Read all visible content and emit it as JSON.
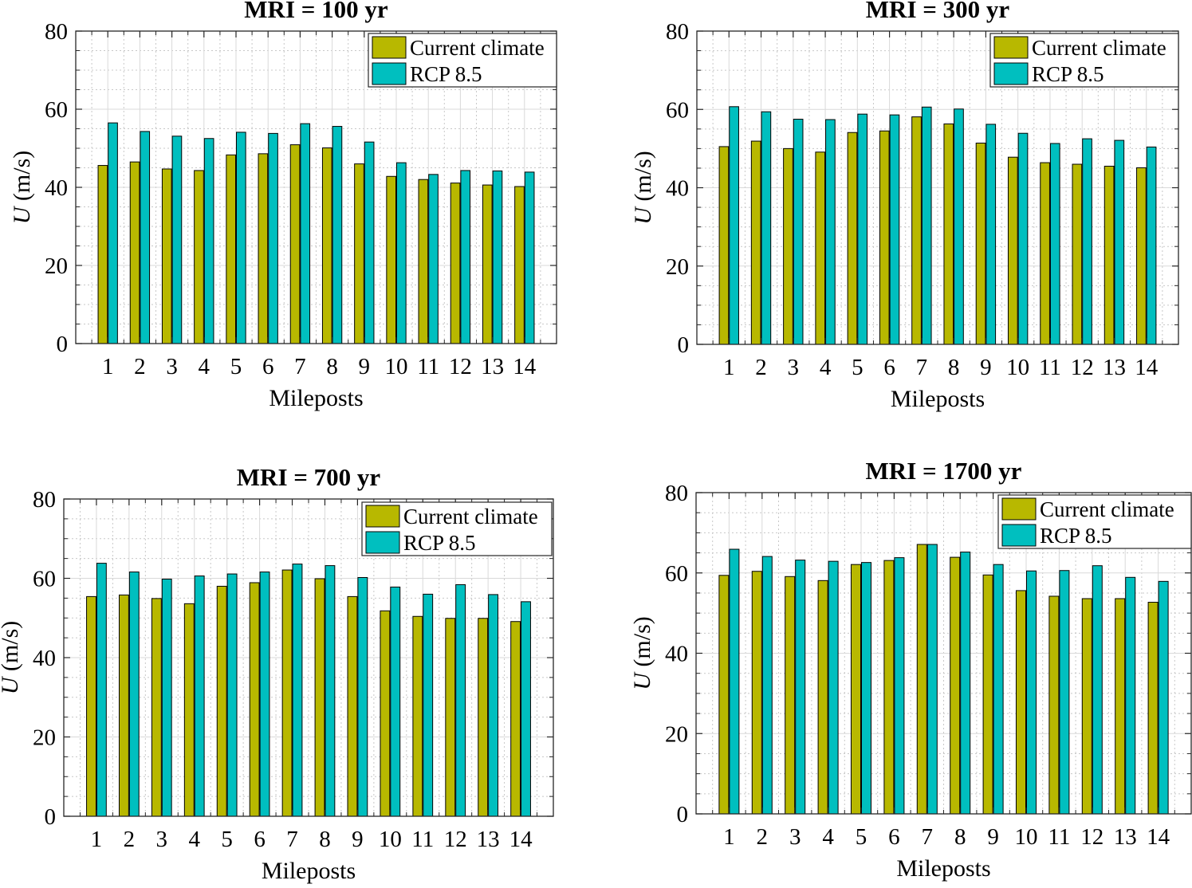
{
  "colors": {
    "current": "#b8b800",
    "rcp": "#00bfbf",
    "axis": "#262626",
    "background": "#ffffff"
  },
  "chart_data": [
    {
      "type": "bar",
      "title": "MRI = 100 yr",
      "xlabel": "Mileposts",
      "ylabel_var": "U",
      "ylabel_unit": " (m/s)",
      "ylim": [
        0,
        80
      ],
      "yticks": [
        0,
        20,
        40,
        60,
        80
      ],
      "categories": [
        "1",
        "2",
        "3",
        "4",
        "5",
        "6",
        "7",
        "8",
        "9",
        "10",
        "11",
        "12",
        "13",
        "14"
      ],
      "legend_position": "top-right",
      "series": [
        {
          "name": "Current climate",
          "values": [
            45.6,
            46.5,
            44.7,
            44.3,
            48.3,
            48.6,
            50.9,
            50.1,
            46.0,
            42.8,
            42.0,
            41.1,
            40.6,
            40.2
          ]
        },
        {
          "name": "RCP 8.5",
          "values": [
            56.5,
            54.3,
            53.1,
            52.5,
            54.1,
            53.8,
            56.3,
            55.6,
            51.6,
            46.3,
            43.3,
            44.3,
            44.2,
            43.9
          ]
        }
      ]
    },
    {
      "type": "bar",
      "title": "MRI = 300 yr",
      "xlabel": "Mileposts",
      "ylabel_var": "U",
      "ylabel_unit": " (m/s)",
      "ylim": [
        0,
        80
      ],
      "yticks": [
        0,
        20,
        40,
        60,
        80
      ],
      "categories": [
        "1",
        "2",
        "3",
        "4",
        "5",
        "6",
        "7",
        "8",
        "9",
        "10",
        "11",
        "12",
        "13",
        "14"
      ],
      "legend_position": "top-right",
      "series": [
        {
          "name": "Current climate",
          "values": [
            50.5,
            51.9,
            50.0,
            49.1,
            54.1,
            54.5,
            58.1,
            56.3,
            51.4,
            47.8,
            46.4,
            46.0,
            45.5,
            45.1
          ]
        },
        {
          "name": "RCP 8.5",
          "values": [
            60.7,
            59.4,
            57.5,
            57.4,
            58.8,
            58.6,
            60.6,
            60.1,
            56.2,
            53.9,
            51.3,
            52.5,
            52.1,
            50.4
          ]
        }
      ]
    },
    {
      "type": "bar",
      "title": "MRI = 700 yr",
      "xlabel": "Mileposts",
      "ylabel_var": "U",
      "ylabel_unit": " (m/s)",
      "ylim": [
        0,
        80
      ],
      "yticks": [
        0,
        20,
        40,
        60,
        80
      ],
      "categories": [
        "1",
        "2",
        "3",
        "4",
        "5",
        "6",
        "7",
        "8",
        "9",
        "10",
        "11",
        "12",
        "13",
        "14"
      ],
      "legend_position": "top-right",
      "series": [
        {
          "name": "Current climate",
          "values": [
            55.4,
            55.8,
            54.9,
            53.6,
            58.0,
            58.9,
            62.1,
            59.9,
            55.4,
            51.8,
            50.4,
            49.9,
            49.9,
            49.1
          ]
        },
        {
          "name": "RCP 8.5",
          "values": [
            63.8,
            61.6,
            59.8,
            60.6,
            61.1,
            61.6,
            63.6,
            63.2,
            60.2,
            57.8,
            56.0,
            58.4,
            55.9,
            54.1
          ]
        }
      ]
    },
    {
      "type": "bar",
      "title": "MRI = 1700 yr",
      "xlabel": "Mileposts",
      "ylabel_var": "U",
      "ylabel_unit": " (m/s)",
      "ylim": [
        0,
        80
      ],
      "yticks": [
        0,
        20,
        40,
        60,
        80
      ],
      "categories": [
        "1",
        "2",
        "3",
        "4",
        "5",
        "6",
        "7",
        "8",
        "9",
        "10",
        "11",
        "12",
        "13",
        "14"
      ],
      "legend_position": "top-right",
      "series": [
        {
          "name": "Current climate",
          "values": [
            59.4,
            60.4,
            59.1,
            58.1,
            62.1,
            63.1,
            67.1,
            63.9,
            59.5,
            55.6,
            54.2,
            53.6,
            53.6,
            52.7
          ]
        },
        {
          "name": "RCP 8.5",
          "values": [
            65.9,
            64.1,
            63.2,
            62.9,
            62.6,
            63.8,
            67.1,
            65.2,
            62.1,
            60.5,
            60.6,
            61.8,
            58.9,
            57.9
          ]
        }
      ]
    }
  ]
}
